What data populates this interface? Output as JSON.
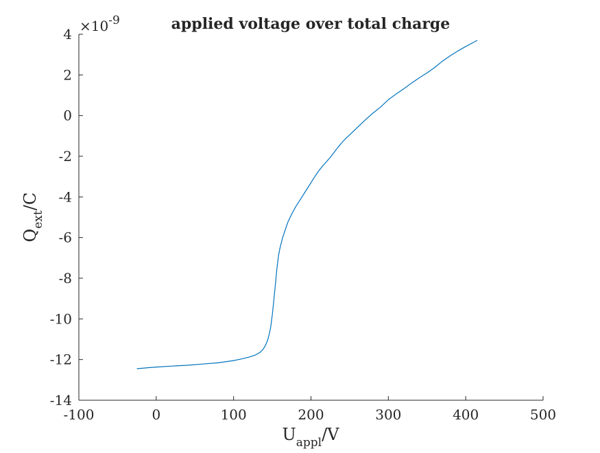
{
  "chart_data": {
    "type": "line",
    "title": "applied voltage over total charge",
    "xlabel": {
      "main": "U",
      "sub": "appl",
      "unit": "/V"
    },
    "ylabel": {
      "main": "Q",
      "sub": "ext",
      "unit": "/C"
    },
    "y_exponent": {
      "base": "×10",
      "power": "-9"
    },
    "xlim": [
      -100,
      500
    ],
    "ylim": [
      -14,
      4
    ],
    "xticks": [
      -100,
      0,
      100,
      200,
      300,
      400,
      500
    ],
    "yticks": [
      -14,
      -12,
      -10,
      -8,
      -6,
      -4,
      -2,
      0,
      2,
      4
    ],
    "grid": false,
    "line_color": "#0072BD",
    "series": [
      {
        "x": [
          -25,
          -10,
          0,
          20,
          40,
          60,
          80,
          100,
          110,
          120,
          128,
          134,
          138,
          141,
          144,
          146,
          148,
          150,
          152,
          154,
          156,
          158,
          160,
          163,
          166,
          170,
          175,
          180,
          185,
          190,
          195,
          200,
          205,
          210,
          215,
          220,
          225,
          230,
          235,
          240,
          245,
          250,
          260,
          270,
          280,
          290,
          300,
          310,
          320,
          330,
          340,
          350,
          360,
          370,
          380,
          390,
          400,
          410,
          415
        ],
        "y": [
          -12.45,
          -12.4,
          -12.37,
          -12.32,
          -12.28,
          -12.22,
          -12.16,
          -12.05,
          -11.97,
          -11.88,
          -11.78,
          -11.65,
          -11.5,
          -11.32,
          -11.05,
          -10.75,
          -10.4,
          -9.8,
          -9.1,
          -8.3,
          -7.5,
          -6.9,
          -6.5,
          -6.05,
          -5.7,
          -5.25,
          -4.85,
          -4.5,
          -4.2,
          -3.9,
          -3.6,
          -3.3,
          -3.0,
          -2.72,
          -2.48,
          -2.27,
          -2.05,
          -1.8,
          -1.55,
          -1.33,
          -1.12,
          -0.95,
          -0.58,
          -0.22,
          0.12,
          0.42,
          0.78,
          1.06,
          1.32,
          1.6,
          1.86,
          2.1,
          2.37,
          2.68,
          2.94,
          3.18,
          3.4,
          3.6,
          3.7
        ]
      }
    ]
  }
}
